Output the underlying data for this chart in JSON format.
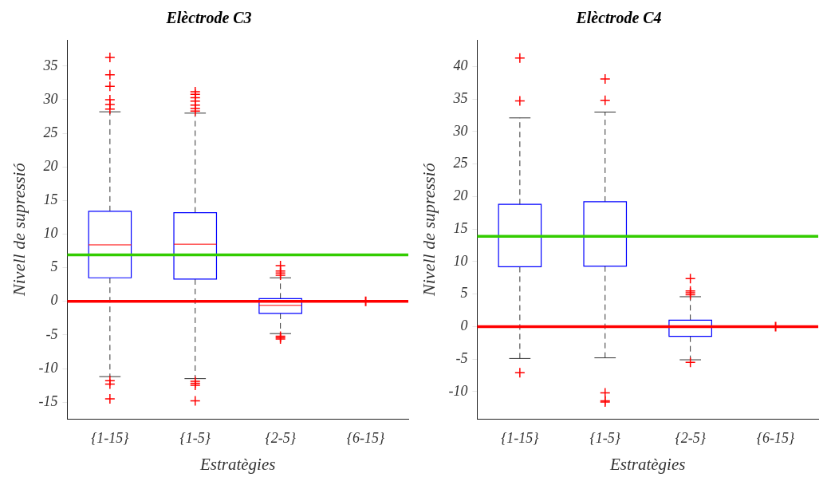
{
  "chart_data": [
    {
      "type": "box",
      "title": "Elèctrode C3",
      "xlabel": "Estratègies",
      "ylabel": "Nivell de supressió",
      "categories": [
        "{1-15}",
        "{1-5}",
        "{2-5}",
        "{6-15}"
      ],
      "color": "#0000ff",
      "ylim": [
        -17.5,
        38.9
      ],
      "yticks": [
        -15,
        -10,
        -5,
        0,
        5,
        10,
        15,
        20,
        25,
        30,
        35
      ],
      "grid": false,
      "legend": false,
      "marker": "cross",
      "boxes": [
        {
          "low": -11.2,
          "q1": 3.5,
          "median": 8.4,
          "q3": 13.4,
          "high": 28.2,
          "outliers": [
            28.6,
            29.3,
            30,
            32,
            33.7,
            36.3,
            -11.8,
            -12.3,
            -14.5
          ]
        },
        {
          "low": -11.5,
          "q1": 3.3,
          "median": 8.5,
          "q3": 13.2,
          "high": 28,
          "outliers": [
            28.3,
            28.7,
            29.2,
            29.8,
            30.3,
            30.8,
            31.2,
            -11.9,
            -12.2,
            -12.5,
            -14.8
          ]
        },
        {
          "low": -4.8,
          "q1": -1.8,
          "median": -0.6,
          "q3": 0.4,
          "high": 3.5,
          "outliers": [
            3.9,
            4.2,
            4.5,
            5.3,
            -5.2,
            -5.4,
            -5.6
          ]
        },
        null
      ],
      "series": [
        {
          "type": "scatter",
          "x": [
            "{6-15}"
          ],
          "values": [
            0
          ],
          "color": "#ff0000"
        }
      ],
      "ref_lines": [
        {
          "axis": "y",
          "value": 6.9,
          "color": "#33cc00"
        },
        {
          "axis": "y",
          "value": 0,
          "color": "#ff0000"
        }
      ]
    },
    {
      "type": "box",
      "title": "Elèctrode C4",
      "xlabel": "Estratègies",
      "ylabel": "Nivell de supressió",
      "categories": [
        "{1-15}",
        "{1-5}",
        "{2-5}",
        "{6-15}"
      ],
      "color": "#0000ff",
      "ylim": [
        -14.2,
        44.1
      ],
      "yticks": [
        -10,
        -5,
        0,
        5,
        10,
        15,
        20,
        25,
        30,
        35,
        40
      ],
      "grid": false,
      "legend": false,
      "marker": "cross",
      "boxes": [
        {
          "low": -4.9,
          "q1": 9.2,
          "median": 13.9,
          "q3": 18.8,
          "high": 32.1,
          "outliers": [
            34.7,
            41.3,
            -7.1
          ]
        },
        {
          "low": -4.8,
          "q1": 9.3,
          "median": 13.9,
          "q3": 19.2,
          "high": 33,
          "outliers": [
            34.8,
            38.1,
            -10.2,
            -11.4,
            -11.6
          ]
        },
        {
          "low": -5.1,
          "q1": -1.5,
          "median": 0,
          "q3": 1,
          "high": 4.6,
          "outliers": [
            4.9,
            5.2,
            5.5,
            7.4,
            -5.5
          ]
        },
        null
      ],
      "series": [
        {
          "type": "scatter",
          "x": [
            "{6-15}"
          ],
          "values": [
            0
          ],
          "color": "#ff0000"
        }
      ],
      "ref_lines": [
        {
          "axis": "y",
          "value": 13.9,
          "color": "#33cc00"
        },
        {
          "axis": "y",
          "value": 0,
          "color": "#ff0000"
        }
      ]
    }
  ]
}
